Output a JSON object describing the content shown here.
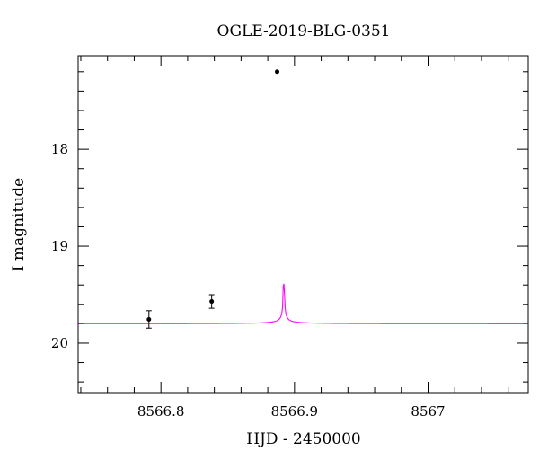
{
  "chart_data": {
    "type": "scatter",
    "title": "OGLE-2019-BLG-0351",
    "xlabel": "HJD - 2450000",
    "ylabel": "I magnitude",
    "xlim": [
      8566.738,
      8567.075
    ],
    "ylim": [
      20.51,
      17.035
    ],
    "y_inverted": true,
    "xticks": [
      8566.8,
      8566.9,
      8567
    ],
    "xtick_labels": [
      "8566.8",
      "8566.9",
      "8567"
    ],
    "yticks": [
      18,
      19,
      20
    ],
    "ytick_labels": [
      "18",
      "19",
      "20"
    ],
    "grid": false,
    "series": [
      {
        "kind": "points",
        "color": "#000000",
        "x": [
          8566.791,
          8566.838,
          8566.887
        ],
        "y": [
          19.755,
          19.57,
          17.2
        ],
        "yerr": [
          0.09,
          0.07,
          0.0
        ]
      },
      {
        "kind": "model_curve",
        "color": "#ff00ff",
        "t0": 8566.892,
        "baseline": 19.8,
        "amp": 0.0165
      }
    ]
  }
}
